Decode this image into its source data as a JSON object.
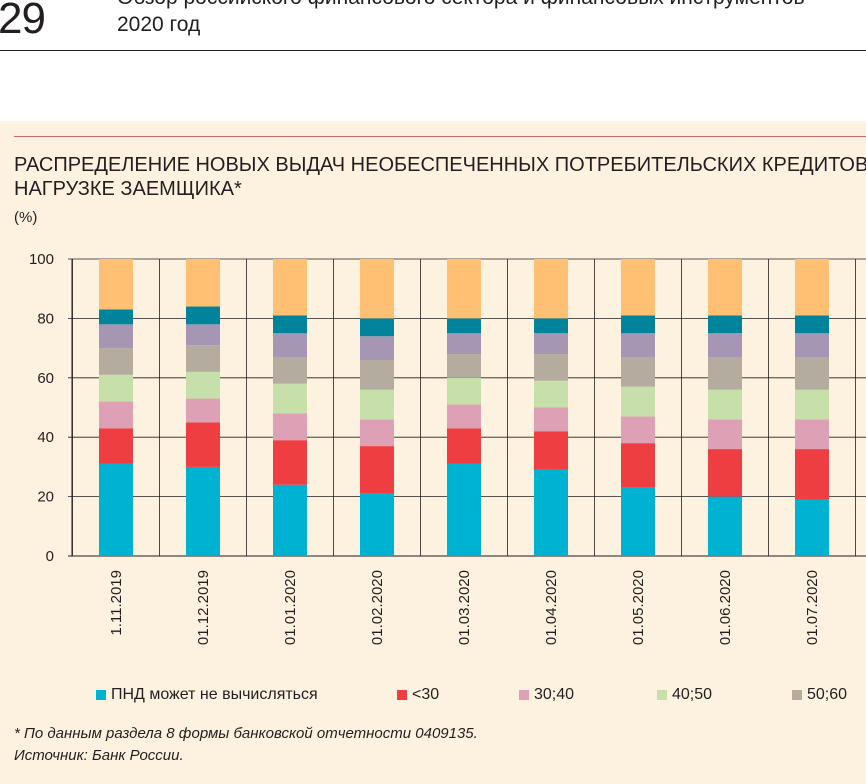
{
  "header": {
    "page_number": "29",
    "line1": "Обзор российского финансового сектора и финансовых инструментов",
    "line2": "2020 год"
  },
  "chart_data": {
    "type": "bar",
    "stacked": true,
    "title": "РАСПРЕДЕЛЕНИЕ НОВЫХ ВЫДАЧ НЕОБЕСПЕЧЕННЫХ ПОТРЕБИТЕЛЬСКИХ КРЕДИТОВ ПО ДОЛГОВОЙ НАГРУЗКЕ ЗАЕМЩИКА*",
    "title_lines": [
      "РАСПРЕДЕЛЕНИЕ НОВЫХ ВЫДАЧ НЕОБЕСПЕЧЕННЫХ ПОТРЕБИТЕЛЬСКИХ КРЕДИТОВ ПО ДОЛГОВОЙ",
      "НАГРУЗКЕ ЗАЕМЩИКА*"
    ],
    "ylabel": "(%)",
    "ylim": [
      0,
      100
    ],
    "yticks": [
      0,
      20,
      40,
      60,
      80,
      100
    ],
    "categories": [
      "1.11.2019",
      "01.12.2019",
      "01.01.2020",
      "01.02.2020",
      "01.03.2020",
      "01.04.2020",
      "01.05.2020",
      "01.06.2020",
      "01.07.2020"
    ],
    "series": [
      {
        "name": "ПНД может не вычисляться",
        "color": "#00b2d2",
        "values": [
          31,
          30,
          24,
          21,
          31,
          29,
          23,
          20,
          19
        ]
      },
      {
        "name": "<30",
        "color": "#ef3e42",
        "values": [
          12,
          15,
          15,
          16,
          12,
          13,
          15,
          16,
          17
        ]
      },
      {
        "name": "30;40",
        "color": "#dda0b5",
        "values": [
          9,
          8,
          9,
          9,
          8,
          8,
          9,
          10,
          10
        ]
      },
      {
        "name": "40;50",
        "color": "#c7dfa8",
        "values": [
          9,
          9,
          10,
          10,
          9,
          9,
          10,
          10,
          10
        ]
      },
      {
        "name": "50;60",
        "color": "#b5aca0",
        "values": [
          9,
          9,
          9,
          10,
          8,
          9,
          10,
          11,
          11
        ]
      },
      {
        "name": "",
        "color": "#a596b3",
        "values": [
          8,
          7,
          8,
          8,
          7,
          7,
          8,
          8,
          8
        ]
      },
      {
        "name": "",
        "color": "#00849c",
        "values": [
          5,
          6,
          6,
          6,
          5,
          5,
          6,
          6,
          6
        ]
      },
      {
        "name": "",
        "color": "#ffc074",
        "values": [
          17,
          16,
          19,
          20,
          20,
          20,
          19,
          19,
          19
        ]
      }
    ],
    "grid": true,
    "legend_position": "bottom"
  },
  "footnote": {
    "line1": "* По данным раздела 8 формы банковской отчетности 0409135.",
    "line2": "Источник: Банк России."
  }
}
